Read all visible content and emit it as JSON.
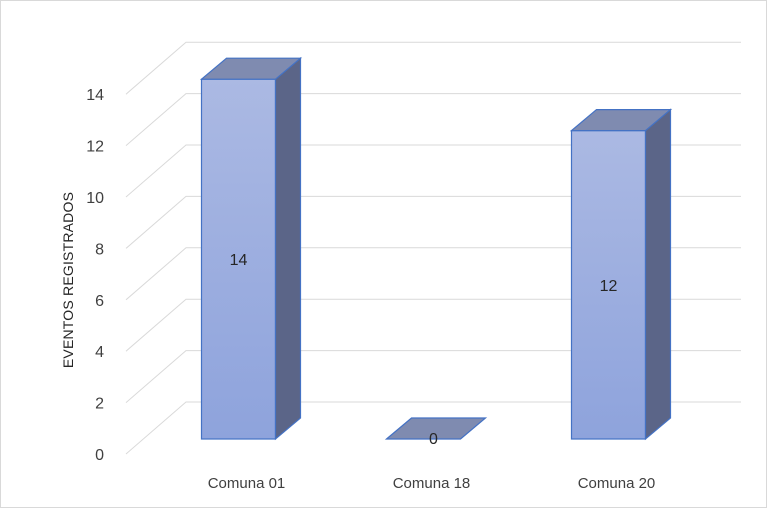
{
  "chart_data": {
    "type": "bar",
    "style": "3d-column",
    "title": "",
    "xlabel": "",
    "ylabel": "EVENTOS REGISTRADOS",
    "categories": [
      "Comuna 01",
      "Comuna 18",
      "Comuna 20"
    ],
    "values": [
      14,
      0,
      12
    ],
    "data_labels": [
      "14",
      "0",
      "12"
    ],
    "ylim": [
      0,
      14
    ],
    "yticks": [
      0,
      2,
      4,
      6,
      8,
      10,
      12,
      14
    ],
    "grid": true,
    "legend": "none",
    "colors": {
      "bar_front_top": "#abb9e3",
      "bar_front_bottom": "#8ea3dc",
      "bar_top": "#7f8bb0",
      "bar_side": "#5b6588",
      "bar_edge": "#4472c4",
      "grid": "#d9d9d9"
    }
  }
}
